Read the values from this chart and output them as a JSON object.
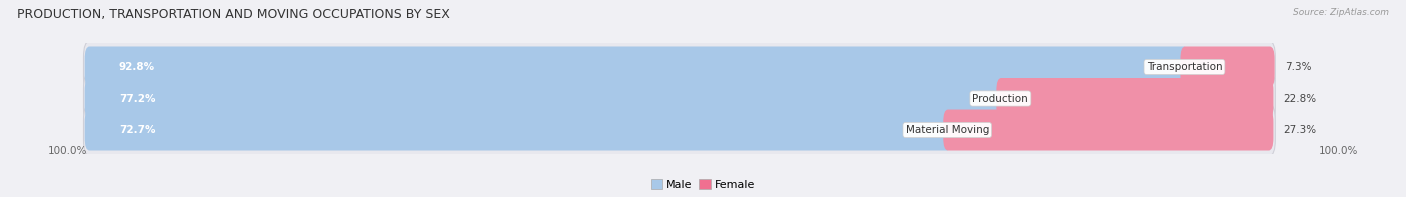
{
  "title": "PRODUCTION, TRANSPORTATION AND MOVING OCCUPATIONS BY SEX",
  "source_text": "Source: ZipAtlas.com",
  "categories": [
    "Transportation",
    "Production",
    "Material Moving"
  ],
  "male_values": [
    92.8,
    77.2,
    72.7
  ],
  "female_values": [
    7.3,
    22.8,
    27.3
  ],
  "male_color": "#a8c8e8",
  "female_color": "#f07090",
  "female_bar_color": "#f090a8",
  "bar_bg_color": "#e8e8ee",
  "bar_border_color": "#d0d0d8",
  "background_color": "#f0f0f4",
  "title_fontsize": 9,
  "label_fontsize": 7.5,
  "axis_label_fontsize": 7.5,
  "legend_fontsize": 8,
  "bar_height": 0.62,
  "total_width": 100.0,
  "left_axis_label": "100.0%",
  "right_axis_label": "100.0%"
}
